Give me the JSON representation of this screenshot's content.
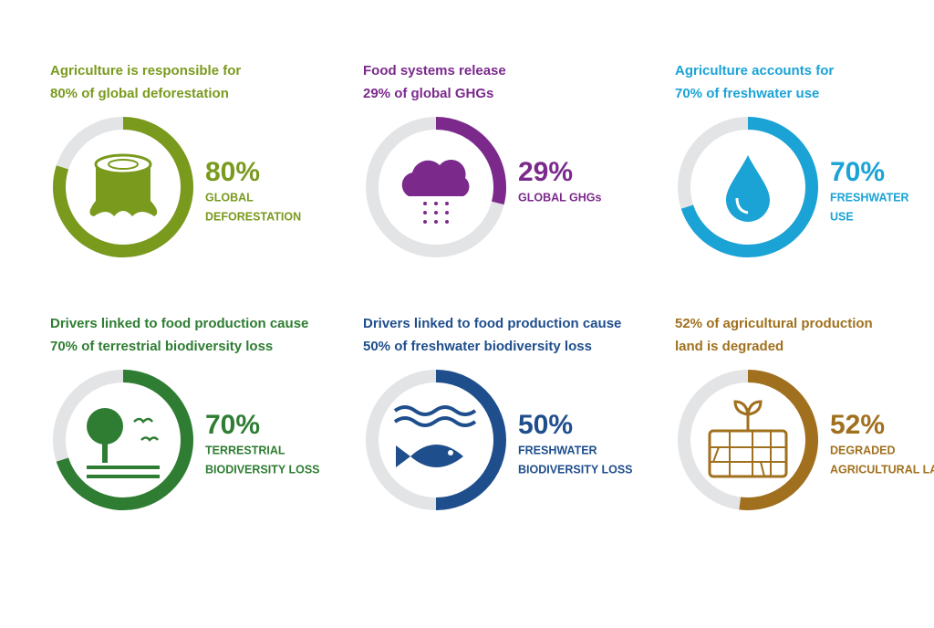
{
  "chart_data": [
    {
      "type": "donut",
      "title": [
        "Agriculture is responsible for",
        "80% of global deforestation"
      ],
      "values": [
        80
      ],
      "value_labels": [
        "80%"
      ],
      "label": [
        "GLOBAL",
        "DEFORESTATION"
      ],
      "color": "#7a9a1e"
    },
    {
      "type": "donut",
      "title": [
        "Food systems release",
        "29% of global GHGs"
      ],
      "values": [
        29
      ],
      "value_labels": [
        "29%"
      ],
      "label": [
        "GLOBAL GHGs"
      ],
      "color": "#7b2a8c"
    },
    {
      "type": "donut",
      "title": [
        "Agriculture accounts for",
        "70% of freshwater use"
      ],
      "values": [
        70
      ],
      "value_labels": [
        "70%"
      ],
      "label": [
        "FRESHWATER",
        "USE"
      ],
      "color": "#1ba3d6"
    },
    {
      "type": "donut",
      "title": [
        "Drivers linked to food production cause",
        "70% of terrestrial biodiversity loss"
      ],
      "values": [
        70
      ],
      "value_labels": [
        "70%"
      ],
      "label": [
        "TERRESTRIAL",
        "BIODIVERSITY LOSS"
      ],
      "color": "#2e7d32"
    },
    {
      "type": "donut",
      "title": [
        "Drivers linked to food production cause",
        "50% of freshwater biodiversity loss"
      ],
      "values": [
        50
      ],
      "value_labels": [
        "50%"
      ],
      "label": [
        "FRESHWATER",
        "BIODIVERSITY LOSS"
      ],
      "color": "#1f4e8c"
    },
    {
      "type": "donut",
      "title": [
        "52% of agricultural production",
        "land is degraded"
      ],
      "values": [
        52
      ],
      "value_labels": [
        "52%"
      ],
      "label": [
        "DEGRADED",
        "AGRICULTURAL LAND"
      ],
      "color": "#a0701e"
    }
  ]
}
